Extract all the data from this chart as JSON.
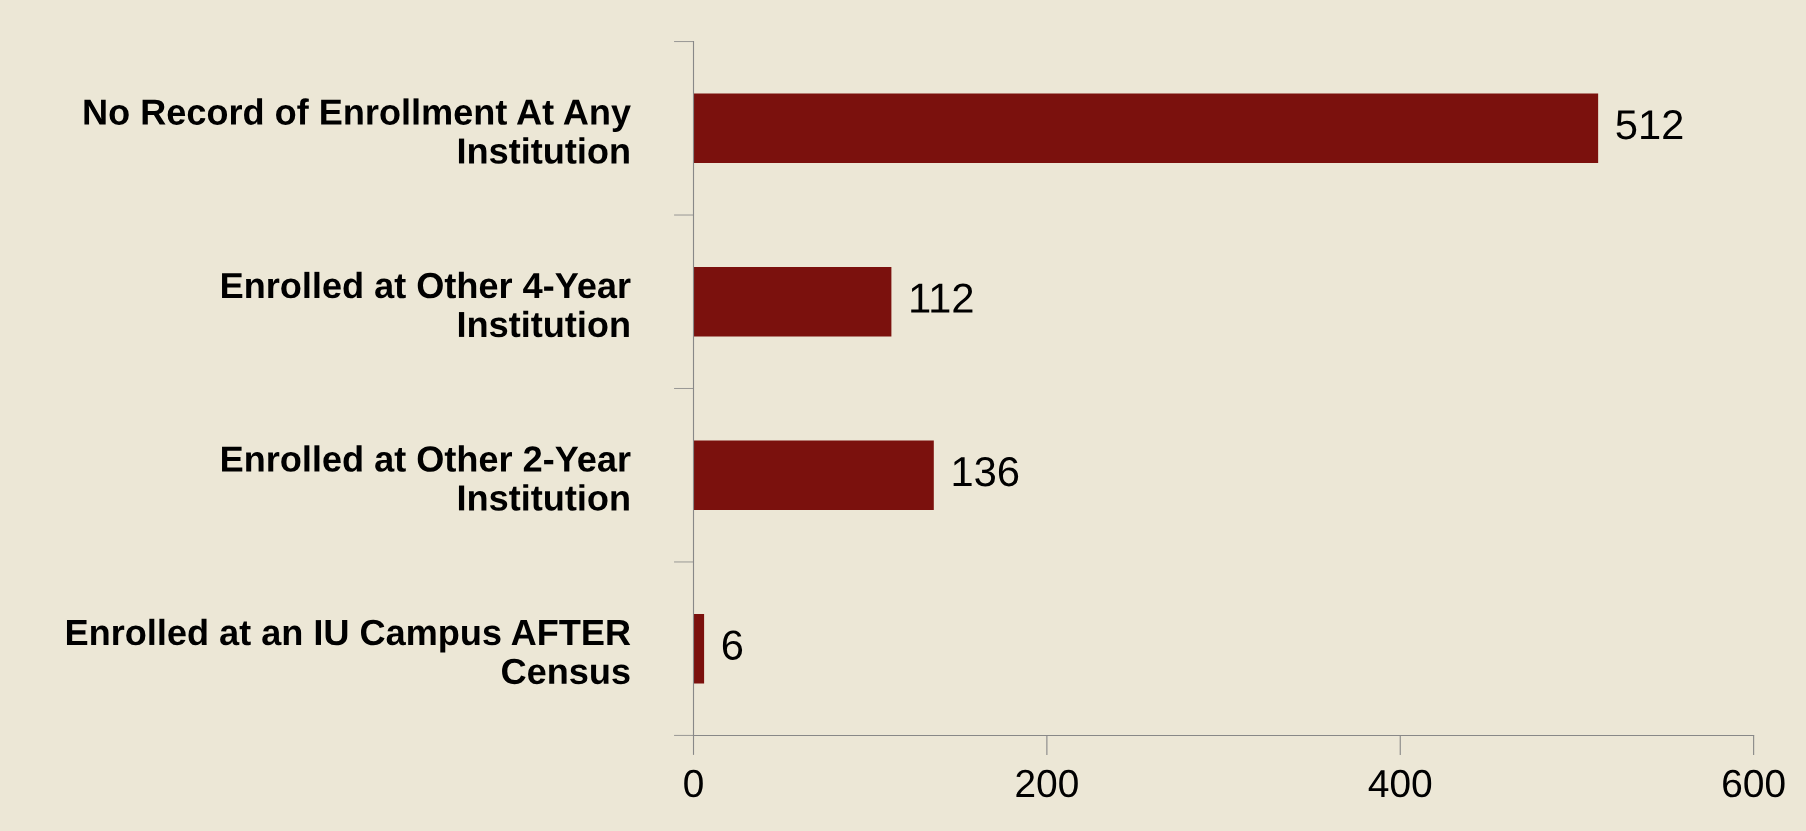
{
  "chart_data": {
    "type": "bar",
    "orientation": "horizontal",
    "categories": [
      "No Record of Enrollment At Any\nInstitution",
      "Enrolled at Other 4-Year\nInstitution",
      "Enrolled at Other 2-Year\nInstitution",
      "Enrolled at an IU Campus AFTER\nCensus"
    ],
    "values": [
      512,
      112,
      136,
      6
    ],
    "color": "#7b110d",
    "xlim": [
      0,
      600
    ],
    "xticks": [
      0,
      200,
      400,
      600
    ],
    "data_labels": true,
    "grid": false,
    "legend": false
  }
}
